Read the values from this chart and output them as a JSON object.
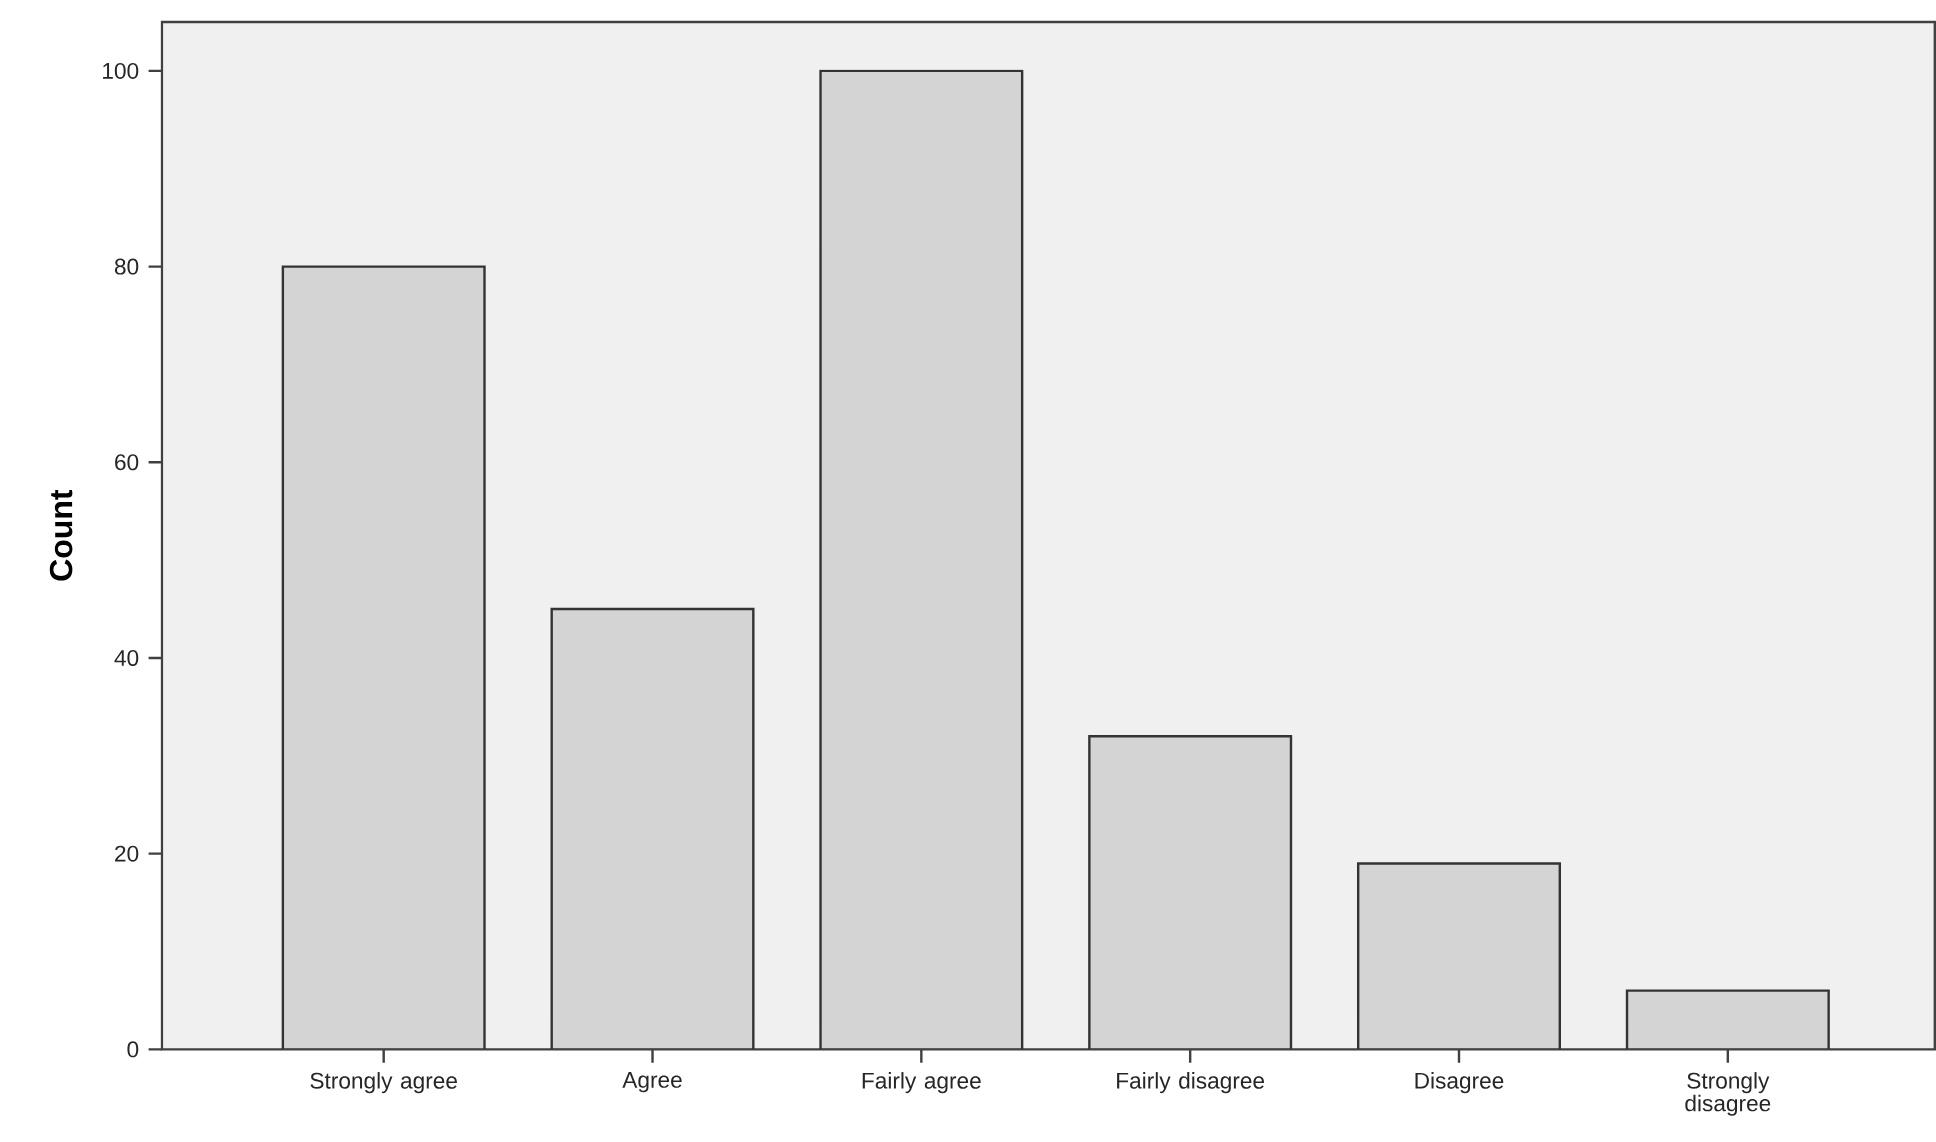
{
  "chart_data": {
    "type": "bar",
    "ylabel": "Count",
    "categories": [
      "Strongly agree",
      "Agree",
      "Fairly agree",
      "Fairly disagree",
      "Disagree",
      "Strongly disagree"
    ],
    "values": [
      80,
      45,
      100,
      32,
      19,
      6
    ],
    "color": "#d4d4d4",
    "ylim": [
      0,
      105
    ],
    "yticks": [
      0,
      20,
      40,
      60,
      80,
      100
    ]
  }
}
